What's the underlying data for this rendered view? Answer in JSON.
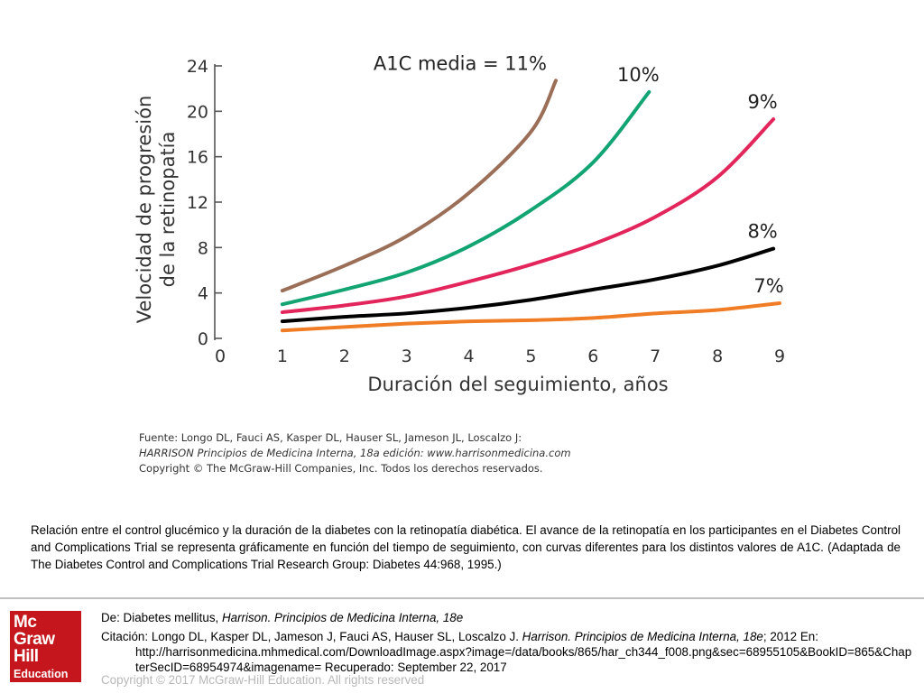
{
  "chart_data": {
    "type": "line",
    "xlabel": "Duración del seguimiento, años",
    "ylabel_line1": "Velocidad de progresión",
    "ylabel_line2": "de la retinopatía",
    "xlim": [
      0,
      9
    ],
    "ylim": [
      0,
      24
    ],
    "x_ticks": [
      "0",
      "1",
      "2",
      "3",
      "4",
      "5",
      "6",
      "7",
      "8",
      "9"
    ],
    "y_ticks": [
      "0",
      "4",
      "8",
      "12",
      "16",
      "20",
      "24"
    ],
    "grid": false,
    "legend": "none",
    "series": [
      {
        "name": "A1C media = 11%",
        "color": "#9b6e57",
        "points": [
          [
            1,
            4.2
          ],
          [
            2,
            6.4
          ],
          [
            3,
            9.0
          ],
          [
            4,
            12.8
          ],
          [
            5,
            18.2
          ],
          [
            5.4,
            22.7
          ]
        ]
      },
      {
        "name": "10%",
        "color": "#13a571",
        "points": [
          [
            1,
            3.0
          ],
          [
            2,
            4.3
          ],
          [
            3,
            5.8
          ],
          [
            4,
            8.1
          ],
          [
            5,
            11.3
          ],
          [
            6,
            15.5
          ],
          [
            6.9,
            21.7
          ]
        ]
      },
      {
        "name": "9%",
        "color": "#e2255a",
        "points": [
          [
            1,
            2.3
          ],
          [
            2,
            2.9
          ],
          [
            3,
            3.7
          ],
          [
            4,
            5.0
          ],
          [
            5,
            6.5
          ],
          [
            6,
            8.3
          ],
          [
            7,
            10.7
          ],
          [
            8,
            14.2
          ],
          [
            8.9,
            19.3
          ]
        ]
      },
      {
        "name": "8%",
        "color": "#000000",
        "points": [
          [
            1,
            1.5
          ],
          [
            2,
            1.9
          ],
          [
            3,
            2.2
          ],
          [
            4,
            2.7
          ],
          [
            5,
            3.4
          ],
          [
            6,
            4.3
          ],
          [
            7,
            5.2
          ],
          [
            8,
            6.4
          ],
          [
            8.9,
            7.9
          ]
        ]
      },
      {
        "name": "7%",
        "color": "#f07d26",
        "points": [
          [
            1,
            0.7
          ],
          [
            2,
            1.0
          ],
          [
            3,
            1.3
          ],
          [
            4,
            1.5
          ],
          [
            5,
            1.6
          ],
          [
            6,
            1.8
          ],
          [
            7,
            2.2
          ],
          [
            8,
            2.5
          ],
          [
            9,
            3.1
          ]
        ]
      }
    ]
  },
  "source": {
    "line1": "Fuente: Longo DL, Fauci AS, Kasper DL, Hauser SL, Jameson JL, Loscalzo J:",
    "line2": "HARRISON Principios de Medicina Interna, 18a edición: www.harrisonmedicina.com",
    "line3": "Copyright © The McGraw-Hill Companies, Inc. Todos los derechos reservados."
  },
  "caption": "Relación entre el control glucémico y la duración de la diabetes con la retinopatía diabética. El avance de la retinopatía en los participantes en el Diabetes Control and Complications Trial se representa gráficamente en función del tiempo de seguimiento, con curvas diferentes para los distintos valores de A1C. (Adaptada de The Diabetes Control and Complications Trial Research Group: Diabetes 44:968, 1995.)",
  "logo": {
    "line1": "Mc",
    "line2": "Graw",
    "line3": "Hill",
    "line4": "Education"
  },
  "reference": {
    "from_prefix": "De: Diabetes mellitus, ",
    "from_book": "Harrison. Principios de Medicina Interna, 18e",
    "citation_prefix": "Citación: Longo DL, Kasper DL, Jameson J, Fauci AS, Hauser SL, Loscalzo J. ",
    "citation_book": "Harrison. Principios de Medicina Interna, 18e",
    "citation_suffix": "; 2012 En:",
    "citation_url": "http://harrisonmedicina.mhmedical.com/DownloadImage.aspx?image=/data/books/865/har_ch344_f008.png&sec=68955105&BookID=865&ChapterSecID=68954974&imagename= Recuperado: September 22, 2017",
    "copyright": "Copyright © 2017 McGraw-Hill Education. All rights reserved"
  }
}
